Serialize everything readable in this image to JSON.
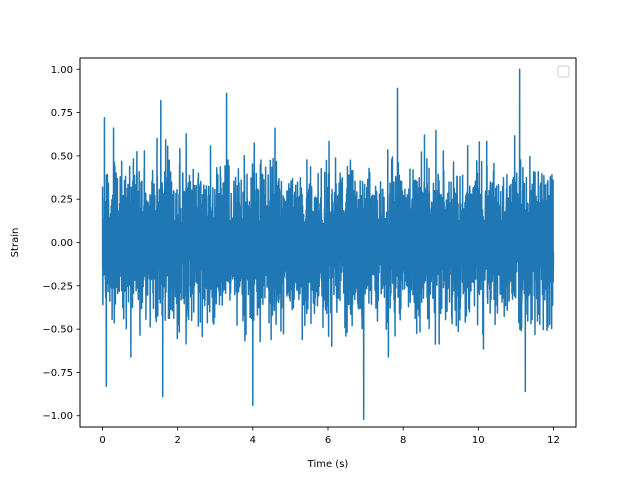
{
  "chart_data": {
    "type": "line",
    "title": "",
    "xlabel": "Time (s)",
    "ylabel": "Strain",
    "xlim": [
      -0.6,
      12.6
    ],
    "ylim": [
      -1.065,
      1.065
    ],
    "xticks": [
      0,
      2,
      4,
      6,
      8,
      10,
      12
    ],
    "xtick_labels": [
      "0",
      "2",
      "4",
      "6",
      "8",
      "10",
      "12"
    ],
    "yticks": [
      -1.0,
      -0.75,
      -0.5,
      -0.25,
      0.0,
      0.25,
      0.5,
      0.75,
      1.0
    ],
    "ytick_labels": [
      "−1.00",
      "−0.75",
      "−0.50",
      "−0.25",
      "0.00",
      "0.25",
      "0.50",
      "0.75",
      "1.00"
    ],
    "grid": false,
    "legend": {
      "placement": "top-right",
      "entries": []
    },
    "series": [
      {
        "color": "#1f77b4",
        "x_range": [
          0,
          12
        ],
        "description_values": {
          "typical_amplitude": 0.45,
          "peaks": [
            {
              "x": 0.05,
              "y": 0.72
            },
            {
              "x": 0.1,
              "y": -0.83
            },
            {
              "x": 1.55,
              "y": 0.82
            },
            {
              "x": 1.6,
              "y": -0.89
            },
            {
              "x": 3.3,
              "y": 0.86
            },
            {
              "x": 4.0,
              "y": -0.94
            },
            {
              "x": 6.95,
              "y": -1.02
            },
            {
              "x": 7.85,
              "y": 0.89
            },
            {
              "x": 11.1,
              "y": 1.0
            },
            {
              "x": 11.25,
              "y": -0.86
            }
          ]
        }
      }
    ]
  }
}
